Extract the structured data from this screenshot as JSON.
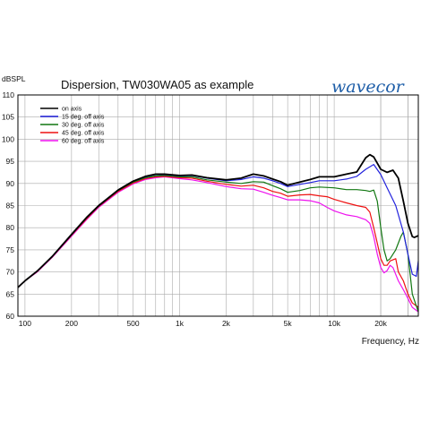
{
  "chart_data": {
    "type": "line",
    "title": "Dispersion, TW030WA05 as example",
    "ylabel": "dBSPL",
    "xlabel": "Frequency, Hz",
    "brand": "wavecor",
    "xscale": "log",
    "xlim": [
      90,
      35000
    ],
    "ylim": [
      60,
      110
    ],
    "grid": true,
    "legend_position": "top-left",
    "y_ticks": [
      60,
      65,
      70,
      75,
      80,
      85,
      90,
      95,
      100,
      105,
      110
    ],
    "x_ticks": [
      {
        "value": 100,
        "label": "100"
      },
      {
        "value": 200,
        "label": "200"
      },
      {
        "value": 500,
        "label": "500"
      },
      {
        "value": 1000,
        "label": "1k"
      },
      {
        "value": 2000,
        "label": "2k"
      },
      {
        "value": 5000,
        "label": "5k"
      },
      {
        "value": 10000,
        "label": "10k"
      },
      {
        "value": 20000,
        "label": "20k"
      }
    ],
    "series": [
      {
        "name": "on axis",
        "color": "#000000",
        "points": [
          [
            90,
            66.5
          ],
          [
            100,
            68
          ],
          [
            120,
            70.2
          ],
          [
            150,
            73.5
          ],
          [
            200,
            78.5
          ],
          [
            250,
            82.3
          ],
          [
            300,
            85
          ],
          [
            400,
            88.5
          ],
          [
            500,
            90.5
          ],
          [
            600,
            91.6
          ],
          [
            700,
            92.1
          ],
          [
            800,
            92.1
          ],
          [
            1000,
            91.8
          ],
          [
            1200,
            91.9
          ],
          [
            1500,
            91.3
          ],
          [
            2000,
            90.8
          ],
          [
            2500,
            91.2
          ],
          [
            3000,
            92.1
          ],
          [
            3500,
            91.7
          ],
          [
            4000,
            91
          ],
          [
            4500,
            90.4
          ],
          [
            5000,
            89.6
          ],
          [
            6000,
            90.3
          ],
          [
            7000,
            90.9
          ],
          [
            8000,
            91.5
          ],
          [
            10000,
            91.5
          ],
          [
            12000,
            92.1
          ],
          [
            14000,
            92.6
          ],
          [
            16000,
            95.8
          ],
          [
            17000,
            96.5
          ],
          [
            18000,
            96
          ],
          [
            20000,
            93.2
          ],
          [
            22000,
            92.5
          ],
          [
            24000,
            93
          ],
          [
            26000,
            91.2
          ],
          [
            28000,
            86
          ],
          [
            30000,
            81
          ],
          [
            32000,
            78
          ],
          [
            33000,
            77.8
          ],
          [
            35000,
            78.2
          ]
        ]
      },
      {
        "name": "15 deg. off axis",
        "color": "#2222dd",
        "points": [
          [
            90,
            66.5
          ],
          [
            100,
            68
          ],
          [
            120,
            70.2
          ],
          [
            150,
            73.5
          ],
          [
            200,
            78.5
          ],
          [
            250,
            82.3
          ],
          [
            300,
            85
          ],
          [
            400,
            88.5
          ],
          [
            500,
            90.5
          ],
          [
            600,
            91.5
          ],
          [
            700,
            92
          ],
          [
            800,
            92
          ],
          [
            1000,
            91.7
          ],
          [
            1200,
            91.8
          ],
          [
            1500,
            91.2
          ],
          [
            2000,
            90.6
          ],
          [
            2500,
            90.9
          ],
          [
            3000,
            91.5
          ],
          [
            3500,
            91.2
          ],
          [
            4000,
            90.6
          ],
          [
            4500,
            90
          ],
          [
            5000,
            89.3
          ],
          [
            6000,
            89.8
          ],
          [
            7000,
            90.2
          ],
          [
            8000,
            90.6
          ],
          [
            10000,
            90.6
          ],
          [
            12000,
            91
          ],
          [
            14000,
            91.6
          ],
          [
            16000,
            93.2
          ],
          [
            18000,
            94.3
          ],
          [
            20000,
            92
          ],
          [
            22000,
            89
          ],
          [
            25000,
            85
          ],
          [
            28000,
            79
          ],
          [
            30000,
            74
          ],
          [
            32000,
            69.5
          ],
          [
            34000,
            69
          ],
          [
            35000,
            72.5
          ]
        ]
      },
      {
        "name": "30 deg. off axis",
        "color": "#117711",
        "points": [
          [
            90,
            66.5
          ],
          [
            100,
            68
          ],
          [
            120,
            70.2
          ],
          [
            150,
            73.5
          ],
          [
            200,
            78.4
          ],
          [
            250,
            82.2
          ],
          [
            300,
            84.9
          ],
          [
            400,
            88.4
          ],
          [
            500,
            90.3
          ],
          [
            600,
            91.3
          ],
          [
            700,
            91.7
          ],
          [
            800,
            91.8
          ],
          [
            1000,
            91.5
          ],
          [
            1200,
            91.5
          ],
          [
            1500,
            90.8
          ],
          [
            2000,
            90.3
          ],
          [
            2500,
            90
          ],
          [
            3000,
            90.4
          ],
          [
            3500,
            90.3
          ],
          [
            4000,
            89.5
          ],
          [
            4500,
            88.8
          ],
          [
            5000,
            88
          ],
          [
            6000,
            88.4
          ],
          [
            7000,
            89
          ],
          [
            8000,
            89.2
          ],
          [
            10000,
            89
          ],
          [
            12000,
            88.6
          ],
          [
            14000,
            88.6
          ],
          [
            16000,
            88.4
          ],
          [
            17000,
            88.2
          ],
          [
            18000,
            88.5
          ],
          [
            19000,
            86
          ],
          [
            20000,
            80
          ],
          [
            21000,
            75
          ],
          [
            22000,
            72.5
          ],
          [
            23000,
            73
          ],
          [
            25000,
            75
          ],
          [
            27000,
            78
          ],
          [
            28000,
            79
          ],
          [
            30000,
            74
          ],
          [
            32000,
            65
          ],
          [
            35000,
            61
          ]
        ]
      },
      {
        "name": "45 deg. off axis",
        "color": "#ee1111",
        "points": [
          [
            90,
            66.5
          ],
          [
            100,
            68
          ],
          [
            120,
            70.1
          ],
          [
            150,
            73.4
          ],
          [
            200,
            78.3
          ],
          [
            250,
            82
          ],
          [
            300,
            84.8
          ],
          [
            400,
            88.2
          ],
          [
            500,
            90.1
          ],
          [
            600,
            91.1
          ],
          [
            700,
            91.5
          ],
          [
            800,
            91.6
          ],
          [
            1000,
            91.3
          ],
          [
            1200,
            91.2
          ],
          [
            1500,
            90.5
          ],
          [
            2000,
            89.8
          ],
          [
            2500,
            89.4
          ],
          [
            3000,
            89.6
          ],
          [
            3500,
            89
          ],
          [
            4000,
            88.2
          ],
          [
            4500,
            87.8
          ],
          [
            5000,
            87.1
          ],
          [
            6000,
            87.4
          ],
          [
            7000,
            87.5
          ],
          [
            8000,
            87.2
          ],
          [
            9000,
            87
          ],
          [
            10000,
            86.4
          ],
          [
            12000,
            85.6
          ],
          [
            14000,
            85
          ],
          [
            16000,
            84.6
          ],
          [
            17000,
            83.5
          ],
          [
            18000,
            80
          ],
          [
            19000,
            76.5
          ],
          [
            20000,
            73
          ],
          [
            21000,
            71.5
          ],
          [
            22000,
            71.5
          ],
          [
            23000,
            72.5
          ],
          [
            25000,
            73
          ],
          [
            26000,
            70
          ],
          [
            28000,
            68
          ],
          [
            30000,
            65
          ],
          [
            32000,
            63
          ],
          [
            35000,
            62
          ]
        ]
      },
      {
        "name": "60 deg. off axis",
        "color": "#ee11ee",
        "points": [
          [
            90,
            66.5
          ],
          [
            100,
            68
          ],
          [
            120,
            70
          ],
          [
            150,
            73.3
          ],
          [
            200,
            78.1
          ],
          [
            250,
            81.8
          ],
          [
            300,
            84.6
          ],
          [
            400,
            88
          ],
          [
            500,
            89.9
          ],
          [
            600,
            90.9
          ],
          [
            700,
            91.3
          ],
          [
            800,
            91.5
          ],
          [
            1000,
            91.1
          ],
          [
            1200,
            90.8
          ],
          [
            1500,
            90.2
          ],
          [
            2000,
            89.3
          ],
          [
            2500,
            88.8
          ],
          [
            3000,
            88.7
          ],
          [
            3500,
            88
          ],
          [
            4000,
            87.3
          ],
          [
            4500,
            86.8
          ],
          [
            5000,
            86.3
          ],
          [
            6000,
            86.3
          ],
          [
            7000,
            86.1
          ],
          [
            8000,
            85.6
          ],
          [
            9000,
            84.6
          ],
          [
            10000,
            83.8
          ],
          [
            12000,
            82.9
          ],
          [
            14000,
            82.5
          ],
          [
            16000,
            81.8
          ],
          [
            17000,
            81
          ],
          [
            18000,
            78
          ],
          [
            19000,
            74
          ],
          [
            20000,
            71
          ],
          [
            21000,
            69.8
          ],
          [
            22000,
            70.3
          ],
          [
            23000,
            71.5
          ],
          [
            24000,
            71
          ],
          [
            26000,
            68
          ],
          [
            28000,
            66
          ],
          [
            30000,
            64
          ],
          [
            32000,
            62
          ],
          [
            35000,
            61
          ]
        ]
      }
    ]
  }
}
